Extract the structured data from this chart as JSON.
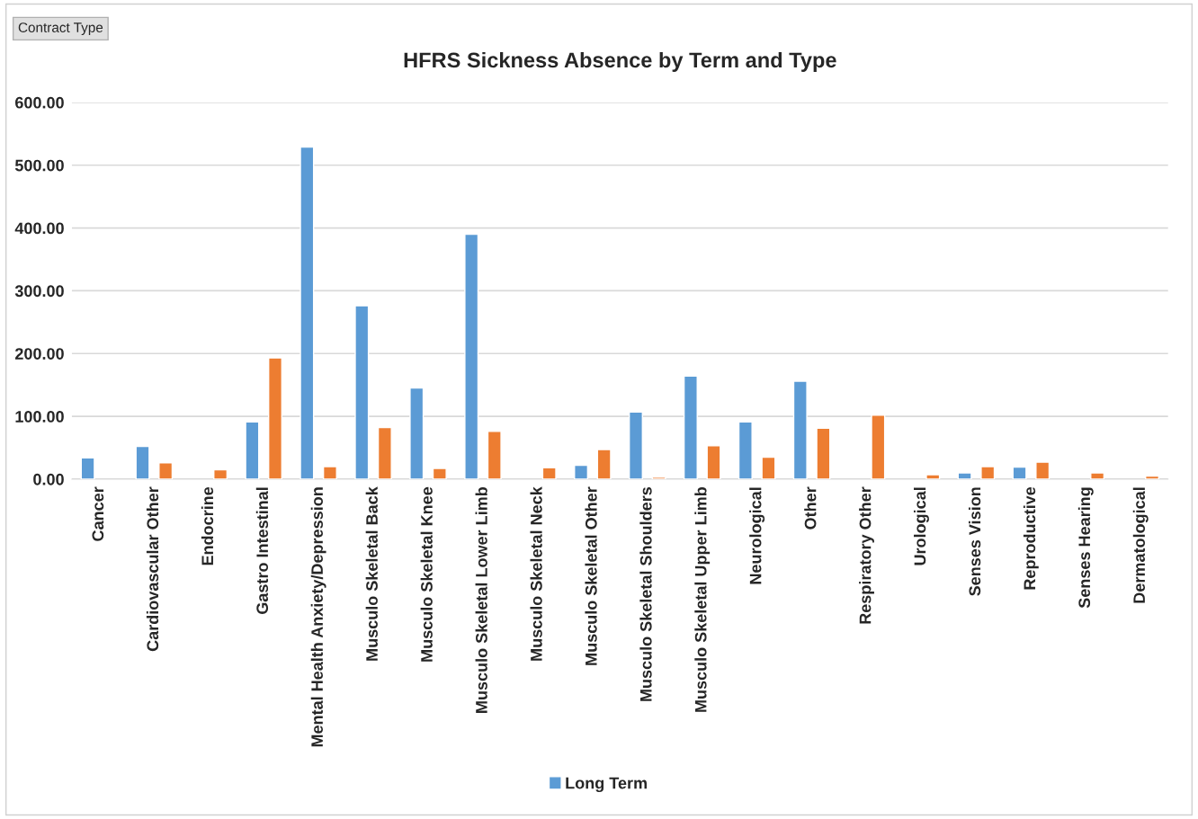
{
  "chart_data": {
    "type": "bar",
    "title": "HFRS Sickness Absence by Term and Type",
    "annotations": [
      "Contract Type"
    ],
    "categories": [
      "Cancer",
      "Cardiovascular Other",
      "Endocrine",
      "Gastro Intestinal",
      "Mental Health Anxiety/Depression",
      "Musculo Skeletal Back",
      "Musculo Skeletal Knee",
      "Musculo Skeletal Lower Limb",
      "Musculo Skeletal Neck",
      "Musculo Skeletal Other",
      "Musculo Skeletal Shoulders",
      "Musculo Skeletal Upper Limb",
      "Neurological",
      "Other",
      "Respiratory Other",
      "Urological",
      "Senses Vision",
      "Reproductive",
      "Senses Hearing",
      "Dermatological"
    ],
    "series": [
      {
        "name": "Long Term",
        "color": "#5b9bd5",
        "values": [
          34,
          52,
          null,
          91,
          529,
          276,
          145,
          390,
          null,
          22,
          107,
          164,
          91,
          156,
          null,
          null,
          10,
          19,
          null,
          null
        ]
      },
      {
        "color": "#ed7d31",
        "values": [
          null,
          26,
          15,
          193,
          20,
          82,
          17,
          76,
          18,
          47,
          3,
          53,
          35,
          81,
          102,
          7,
          20,
          27,
          10,
          5
        ]
      }
    ],
    "ylim": [
      0,
      600
    ],
    "yticks": [
      {
        "value": 0,
        "label": "0.00"
      },
      {
        "value": 100,
        "label": "100.00"
      },
      {
        "value": 200,
        "label": "200.00"
      },
      {
        "value": 300,
        "label": "300.00"
      },
      {
        "value": 400,
        "label": "400.00"
      },
      {
        "value": 500,
        "label": "500.00"
      },
      {
        "value": 600,
        "label": "600.00"
      }
    ],
    "grid": "y",
    "legend": "bottom"
  }
}
